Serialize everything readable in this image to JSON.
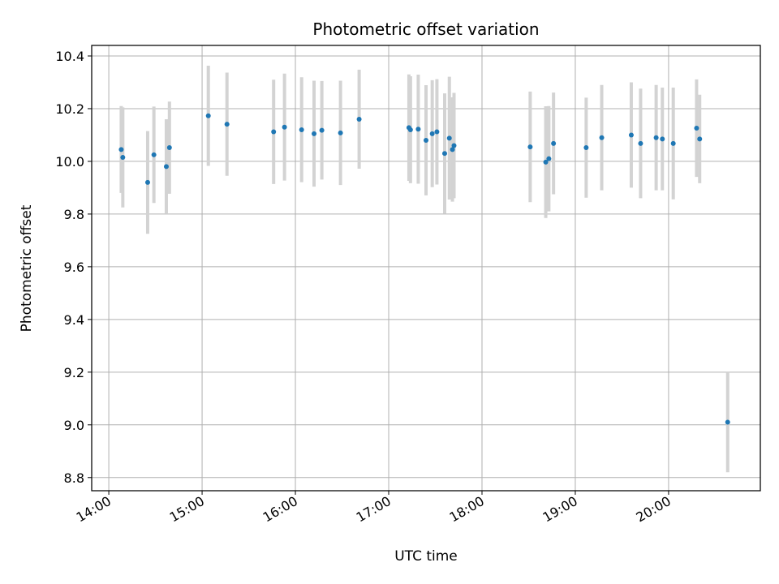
{
  "chart_data": {
    "type": "scatter",
    "title": "Photometric offset variation",
    "xlabel": "UTC time",
    "ylabel": "Photometric offset",
    "x_ticks": [
      "14:00",
      "15:00",
      "16:00",
      "17:00",
      "18:00",
      "19:00",
      "20:00"
    ],
    "y_ticks": [
      "8.8",
      "9.0",
      "9.2",
      "9.4",
      "9.6",
      "9.8",
      "10.0",
      "10.2",
      "10.4"
    ],
    "xlim": [
      "13:49",
      "20:59"
    ],
    "ylim": [
      8.75,
      10.44
    ],
    "grid": true,
    "marker_color": "#1f77b4",
    "errorbar_color": "#d3d3d3",
    "points": [
      {
        "x": "14:08",
        "y": 10.045,
        "err": 0.165
      },
      {
        "x": "14:09",
        "y": 10.015,
        "err": 0.19
      },
      {
        "x": "14:25",
        "y": 9.92,
        "err": 0.195
      },
      {
        "x": "14:29",
        "y": 10.025,
        "err": 0.183
      },
      {
        "x": "14:37",
        "y": 9.98,
        "err": 0.18
      },
      {
        "x": "14:39",
        "y": 10.052,
        "err": 0.175
      },
      {
        "x": "15:04",
        "y": 10.173,
        "err": 0.19
      },
      {
        "x": "15:16",
        "y": 10.141,
        "err": 0.196
      },
      {
        "x": "15:46",
        "y": 10.112,
        "err": 0.198
      },
      {
        "x": "15:53",
        "y": 10.13,
        "err": 0.203
      },
      {
        "x": "16:04",
        "y": 10.12,
        "err": 0.199
      },
      {
        "x": "16:12",
        "y": 10.105,
        "err": 0.201
      },
      {
        "x": "16:17",
        "y": 10.118,
        "err": 0.187
      },
      {
        "x": "16:29",
        "y": 10.108,
        "err": 0.198
      },
      {
        "x": "16:41",
        "y": 10.16,
        "err": 0.188
      },
      {
        "x": "17:13",
        "y": 10.128,
        "err": 0.202
      },
      {
        "x": "17:14",
        "y": 10.12,
        "err": 0.203
      },
      {
        "x": "17:19",
        "y": 10.122,
        "err": 0.207
      },
      {
        "x": "17:24",
        "y": 10.08,
        "err": 0.209
      },
      {
        "x": "17:28",
        "y": 10.105,
        "err": 0.203
      },
      {
        "x": "17:31",
        "y": 10.112,
        "err": 0.2
      },
      {
        "x": "17:36",
        "y": 10.03,
        "err": 0.228
      },
      {
        "x": "17:39",
        "y": 10.088,
        "err": 0.233
      },
      {
        "x": "17:41",
        "y": 10.045,
        "err": 0.198
      },
      {
        "x": "17:42",
        "y": 10.06,
        "err": 0.2
      },
      {
        "x": "18:31",
        "y": 10.055,
        "err": 0.21
      },
      {
        "x": "18:41",
        "y": 9.997,
        "err": 0.212
      },
      {
        "x": "18:43",
        "y": 10.01,
        "err": 0.2
      },
      {
        "x": "18:46",
        "y": 10.068,
        "err": 0.193
      },
      {
        "x": "19:07",
        "y": 10.052,
        "err": 0.19
      },
      {
        "x": "19:17",
        "y": 10.09,
        "err": 0.2
      },
      {
        "x": "19:36",
        "y": 10.1,
        "err": 0.2
      },
      {
        "x": "19:42",
        "y": 10.068,
        "err": 0.208
      },
      {
        "x": "19:52",
        "y": 10.09,
        "err": 0.2
      },
      {
        "x": "19:56",
        "y": 10.085,
        "err": 0.195
      },
      {
        "x": "20:03",
        "y": 10.068,
        "err": 0.212
      },
      {
        "x": "20:18",
        "y": 10.126,
        "err": 0.185
      },
      {
        "x": "20:20",
        "y": 10.085,
        "err": 0.168
      },
      {
        "x": "20:38",
        "y": 9.01,
        "err": 0.19
      }
    ]
  }
}
